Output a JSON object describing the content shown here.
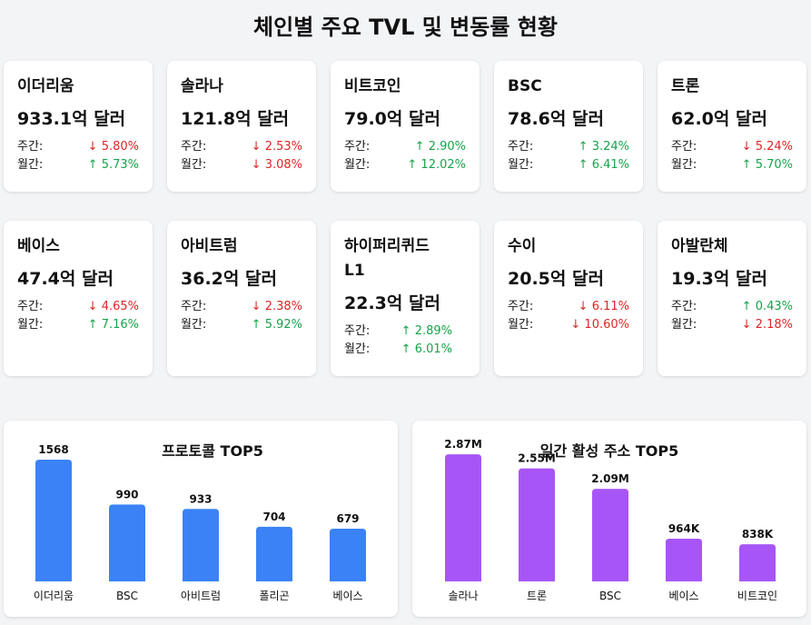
{
  "title": "체인별 주요 TVL 및 변동률 현황",
  "labels": {
    "weekly": "주간:",
    "monthly": "월간:"
  },
  "colors": {
    "up": "#16a34a",
    "down": "#dc2626",
    "protocol_bar": "#3b82f6",
    "address_bar": "#a855f7"
  },
  "chains": [
    {
      "name": "이더리움",
      "tvl": "933.1억 달러",
      "weekly": "↓ 5.80%",
      "weekly_dir": "down",
      "monthly": "↑ 5.73%",
      "monthly_dir": "up"
    },
    {
      "name": "솔라나",
      "tvl": "121.8억 달러",
      "weekly": "↓ 2.53%",
      "weekly_dir": "down",
      "monthly": "↓ 3.08%",
      "monthly_dir": "down"
    },
    {
      "name": "비트코인",
      "tvl": "79.0억 달러",
      "weekly": "↑ 2.90%",
      "weekly_dir": "up",
      "monthly": "↑ 12.02%",
      "monthly_dir": "up"
    },
    {
      "name": "BSC",
      "tvl": "78.6억 달러",
      "weekly": "↑ 3.24%",
      "weekly_dir": "up",
      "monthly": "↑ 6.41%",
      "monthly_dir": "up"
    },
    {
      "name": "트론",
      "tvl": "62.0억 달러",
      "weekly": "↓ 5.24%",
      "weekly_dir": "down",
      "monthly": "↑ 5.70%",
      "monthly_dir": "up"
    },
    {
      "name": "베이스",
      "tvl": "47.4억 달러",
      "weekly": "↓ 4.65%",
      "weekly_dir": "down",
      "monthly": "↑ 7.16%",
      "monthly_dir": "up"
    },
    {
      "name": "아비트럼",
      "tvl": "36.2억 달러",
      "weekly": "↓ 2.38%",
      "weekly_dir": "down",
      "monthly": "↑ 5.92%",
      "monthly_dir": "up"
    },
    {
      "name": "하이퍼리퀴드 L1",
      "tvl": "22.3억 달러",
      "weekly": "↑ 2.89%",
      "weekly_dir": "up",
      "monthly": "↑ 6.01%",
      "monthly_dir": "up"
    },
    {
      "name": "수이",
      "tvl": "20.5억 달러",
      "weekly": "↓ 6.11%",
      "weekly_dir": "down",
      "monthly": "↓ 10.60%",
      "monthly_dir": "down"
    },
    {
      "name": "아발란체",
      "tvl": "19.3억 달러",
      "weekly": "↑ 0.43%",
      "weekly_dir": "up",
      "monthly": "↓ 2.18%",
      "monthly_dir": "down"
    }
  ],
  "chart_data": [
    {
      "type": "bar",
      "title": "프로토콜 TOP5",
      "categories": [
        "이더리움",
        "BSC",
        "아비트럼",
        "폴리곤",
        "베이스"
      ],
      "values": [
        1568,
        990,
        933,
        704,
        679
      ],
      "value_labels": [
        "1568",
        "990",
        "933",
        "704",
        "679"
      ],
      "color": "#3b82f6",
      "ylim": [
        0,
        1568
      ]
    },
    {
      "type": "bar",
      "title": "일간 활성 주소 TOP5",
      "categories": [
        "솔라나",
        "트론",
        "BSC",
        "베이스",
        "비트코인"
      ],
      "values": [
        2870000,
        2550000,
        2090000,
        964000,
        838000
      ],
      "value_labels": [
        "2.87M",
        "2.55M",
        "2.09M",
        "964K",
        "838K"
      ],
      "color": "#a855f7",
      "ylim": [
        0,
        4020000
      ]
    }
  ]
}
